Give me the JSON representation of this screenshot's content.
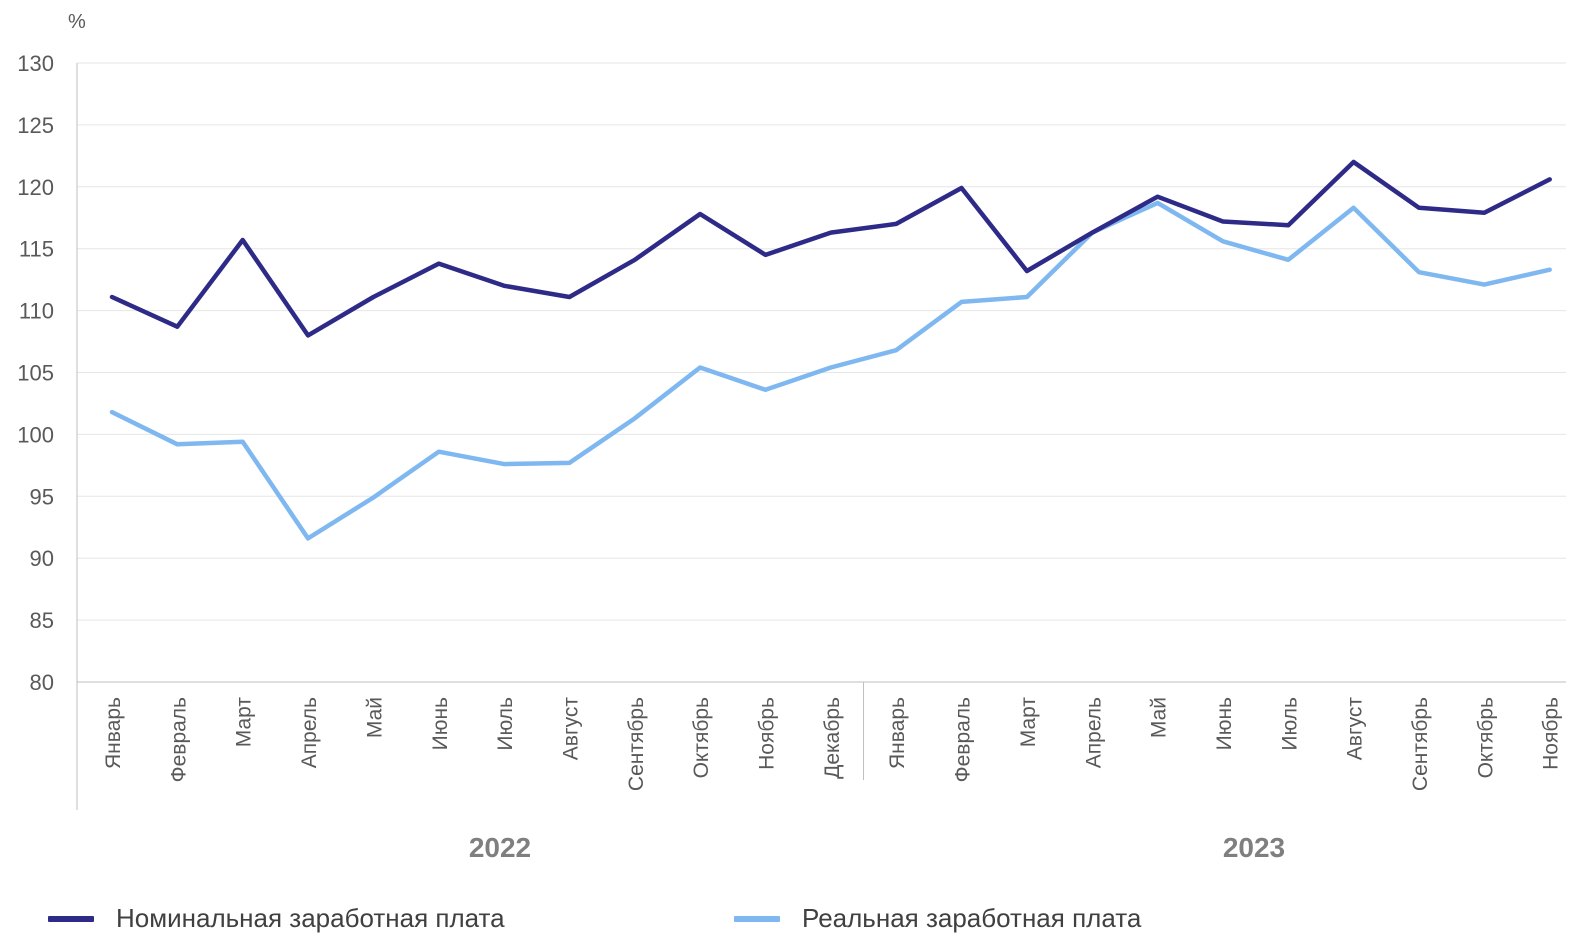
{
  "chart_data": {
    "type": "line",
    "ylabel": "%",
    "ylim": [
      80,
      130
    ],
    "yticks": [
      80,
      85,
      90,
      95,
      100,
      105,
      110,
      115,
      120,
      125,
      130
    ],
    "grid": true,
    "legend_position": "bottom",
    "categories": [
      "Январь",
      "Февраль",
      "Март",
      "Апрель",
      "Май",
      "Июнь",
      "Июль",
      "Август",
      "Сентябрь",
      "Октябрь",
      "Ноябрь",
      "Декабрь",
      "Январь",
      "Февраль",
      "Март",
      "Апрель",
      "Май",
      "Июнь",
      "Июль",
      "Август",
      "Сентябрь",
      "Октябрь",
      "Ноябрь"
    ],
    "groups": [
      {
        "label": "2022",
        "count": 12
      },
      {
        "label": "2023",
        "count": 11
      }
    ],
    "series": [
      {
        "name": "Номинальная заработная плата",
        "color": "#2e2a87",
        "values": [
          111.1,
          108.7,
          115.7,
          108.0,
          111.1,
          113.8,
          112.0,
          111.1,
          114.1,
          117.8,
          114.5,
          116.3,
          117.0,
          119.9,
          113.2,
          116.3,
          119.2,
          117.2,
          116.9,
          122.0,
          118.3,
          117.9,
          120.6
        ]
      },
      {
        "name": "Реальная заработная плата",
        "color": "#7fb8f0",
        "values": [
          101.8,
          99.2,
          99.4,
          91.6,
          94.9,
          98.6,
          97.6,
          97.7,
          101.3,
          105.4,
          103.6,
          105.4,
          106.8,
          110.7,
          111.1,
          116.3,
          118.7,
          115.6,
          114.1,
          118.3,
          113.1,
          112.1,
          113.3
        ]
      }
    ]
  }
}
